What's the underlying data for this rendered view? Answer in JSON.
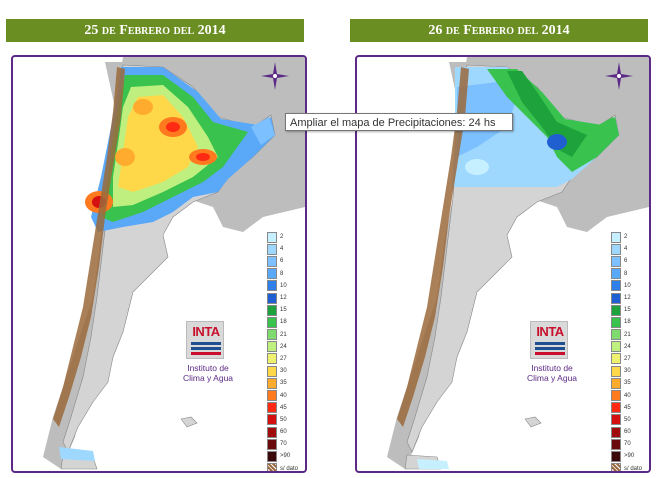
{
  "panels": [
    {
      "title": "25 de Febrero del 2014",
      "logo_text": "INTA",
      "institute_line1": "Instituto de",
      "institute_line2": "Clima y Agua"
    },
    {
      "title": "26 de Febrero del 2014",
      "logo_text": "INTA",
      "institute_line1": "Instituto de",
      "institute_line2": "Clima y Agua"
    }
  ],
  "legend": [
    {
      "label": "2",
      "color": "#c6f0ff"
    },
    {
      "label": "4",
      "color": "#9fd8ff"
    },
    {
      "label": "6",
      "color": "#7cc0ff"
    },
    {
      "label": "8",
      "color": "#5aa8f8"
    },
    {
      "label": "10",
      "color": "#2f7fe8"
    },
    {
      "label": "12",
      "color": "#1f5fd0"
    },
    {
      "label": "15",
      "color": "#1ea33c"
    },
    {
      "label": "18",
      "color": "#39c24d"
    },
    {
      "label": "21",
      "color": "#7fdb6e"
    },
    {
      "label": "24",
      "color": "#bff07f"
    },
    {
      "label": "27",
      "color": "#eef06e"
    },
    {
      "label": "30",
      "color": "#ffd84a"
    },
    {
      "label": "35",
      "color": "#ffac2e"
    },
    {
      "label": "40",
      "color": "#ff7a1e"
    },
    {
      "label": "45",
      "color": "#ff2a14"
    },
    {
      "label": "50",
      "color": "#d41010"
    },
    {
      "label": "60",
      "color": "#a00c0c"
    },
    {
      "label": "70",
      "color": "#6b0a0a"
    },
    {
      "label": ">90",
      "color": "#3a0a0a"
    },
    {
      "label": "s/ dato",
      "color": "#9b6a3c"
    }
  ],
  "tooltip": "Ampliar el mapa de Precipitaciones: 24 hs",
  "colors": {
    "header_bg": "#6b8e23",
    "frame_border": "#5b2a86",
    "land": "#cfcfcf",
    "ocean": "#ffffff"
  }
}
